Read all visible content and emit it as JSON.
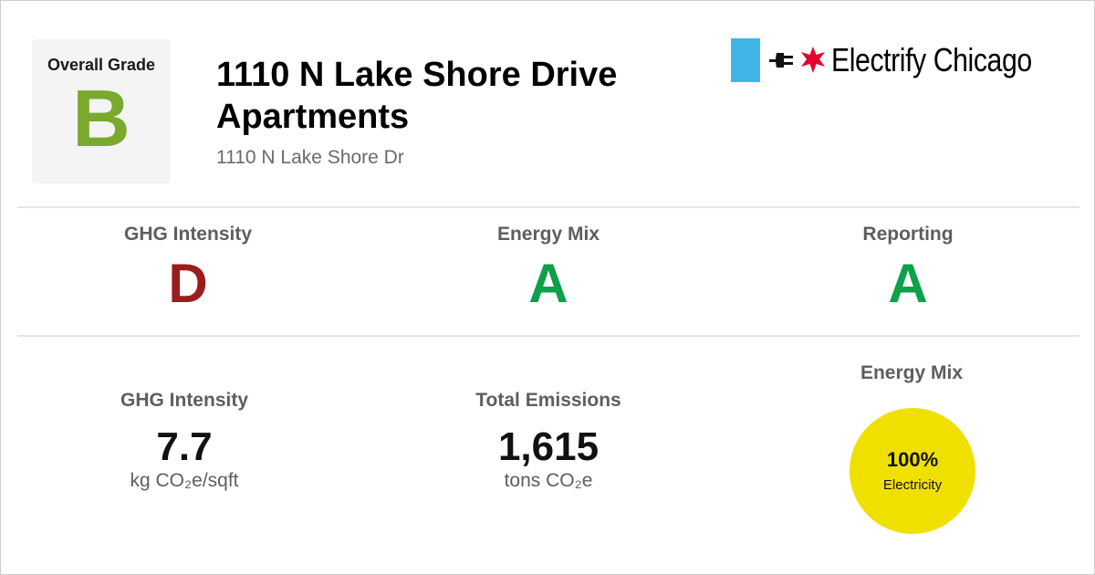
{
  "overall": {
    "label": "Overall Grade",
    "grade": "B",
    "grade_color": "#7aa92e"
  },
  "building": {
    "name": "1110 N Lake Shore Drive Apartments",
    "address": "1110 N Lake Shore Dr"
  },
  "logo": {
    "text": "Electrify Chicago",
    "flag_color": "#41b6e6",
    "star_color": "#e4002b"
  },
  "grades": [
    {
      "label": "GHG Intensity",
      "grade": "D",
      "color": "#9b1c1c"
    },
    {
      "label": "Energy Mix",
      "grade": "A",
      "color": "#0ea04a"
    },
    {
      "label": "Reporting",
      "grade": "A",
      "color": "#0ea04a"
    }
  ],
  "stats": {
    "ghg_intensity": {
      "label": "GHG Intensity",
      "value": "7.7",
      "unit": "kg CO₂e/sqft"
    },
    "total_emissions": {
      "label": "Total Emissions",
      "value": "1,615",
      "unit": "tons CO₂e"
    },
    "energy_mix": {
      "label": "Energy Mix",
      "percent": "100%",
      "source": "Electricity",
      "color": "#f0e000"
    }
  }
}
